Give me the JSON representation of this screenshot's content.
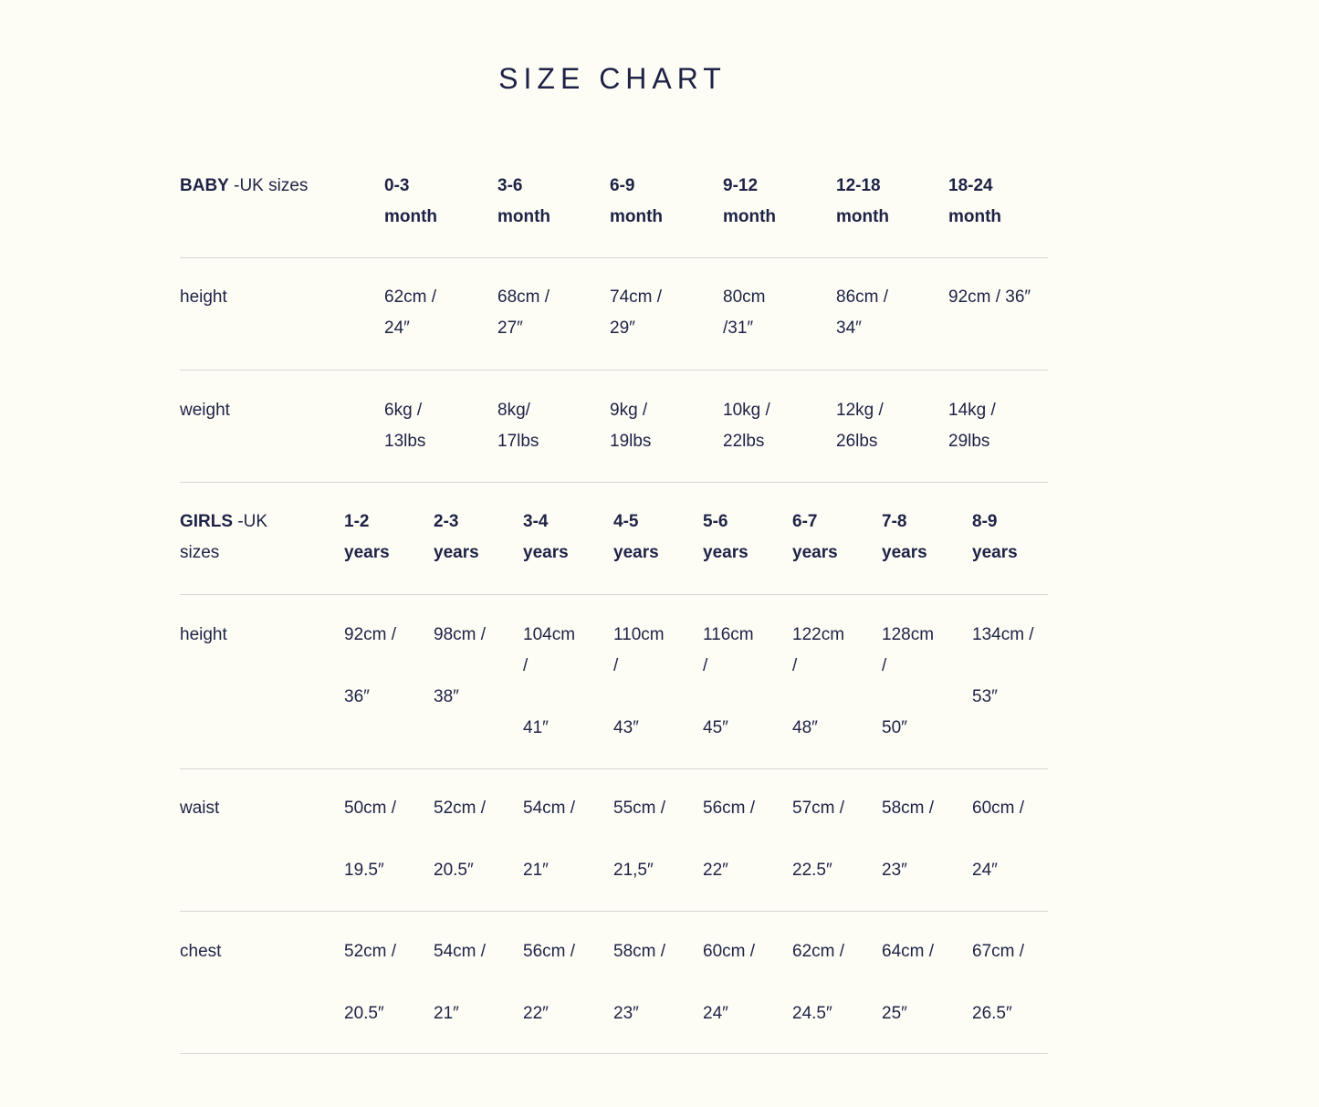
{
  "title": "SIZE CHART",
  "baby": {
    "label_bold": "BABY",
    "label_rest": " -UK sizes",
    "columns": [
      [
        "0-3",
        "month"
      ],
      [
        "3-6",
        "month"
      ],
      [
        "6-9",
        "month"
      ],
      [
        "9-12",
        "month"
      ],
      [
        "12-18",
        "month"
      ],
      [
        "18-24",
        "month"
      ]
    ],
    "rows": [
      {
        "label": "height",
        "cells": [
          [
            "62cm /",
            "24″"
          ],
          [
            "68cm /",
            "27″"
          ],
          [
            "74cm /",
            "29″"
          ],
          [
            "80cm",
            "/31″"
          ],
          [
            "86cm /",
            "34″"
          ],
          [
            "92cm / 36″"
          ]
        ]
      },
      {
        "label": "weight",
        "cells": [
          [
            "6kg /",
            "13lbs"
          ],
          [
            "8kg/",
            "17lbs"
          ],
          [
            "9kg /",
            "19lbs"
          ],
          [
            "10kg /",
            "22lbs"
          ],
          [
            "12kg /",
            "26lbs"
          ],
          [
            "14kg /",
            "29lbs"
          ]
        ]
      }
    ]
  },
  "girls": {
    "label_bold": "GIRLS",
    "label_rest": " -UK",
    "label_line2": "sizes",
    "columns": [
      [
        "1-2",
        "years"
      ],
      [
        "2-3",
        "years"
      ],
      [
        "3-4",
        "years"
      ],
      [
        "4-5",
        "years"
      ],
      [
        "5-6",
        "years"
      ],
      [
        "6-7",
        "years"
      ],
      [
        "7-8",
        "years"
      ],
      [
        "8-9",
        "years"
      ]
    ],
    "rows": [
      {
        "label": "height",
        "cells": [
          [
            "92cm /",
            "",
            "36″"
          ],
          [
            "98cm /",
            "",
            "38″"
          ],
          [
            "104cm",
            "/",
            "",
            "41″"
          ],
          [
            "110cm",
            "/",
            "",
            "43″"
          ],
          [
            "116cm",
            "/",
            "",
            "45″"
          ],
          [
            "122cm",
            "/",
            "",
            "48″"
          ],
          [
            "128cm",
            "/",
            "",
            "50″"
          ],
          [
            "134cm /",
            "",
            "53″"
          ]
        ]
      },
      {
        "label": "waist",
        "cells": [
          [
            "50cm /",
            "",
            "19.5″"
          ],
          [
            "52cm /",
            "",
            "20.5″"
          ],
          [
            "54cm /",
            "",
            "21″"
          ],
          [
            "55cm /",
            "",
            "21,5″"
          ],
          [
            "56cm /",
            "",
            "22″"
          ],
          [
            "57cm /",
            "",
            "22.5″"
          ],
          [
            "58cm /",
            "",
            "23″"
          ],
          [
            "60cm /",
            "",
            "24″"
          ]
        ]
      },
      {
        "label": "chest",
        "cells": [
          [
            "52cm /",
            "",
            "20.5″"
          ],
          [
            "54cm /",
            "",
            "21″"
          ],
          [
            "56cm /",
            "",
            "22″"
          ],
          [
            "58cm /",
            "",
            "23″"
          ],
          [
            "60cm /",
            "",
            "24″"
          ],
          [
            "62cm /",
            "",
            "24.5″"
          ],
          [
            "64cm /",
            "",
            "25″"
          ],
          [
            "67cm /",
            "",
            "26.5″"
          ]
        ]
      }
    ]
  }
}
